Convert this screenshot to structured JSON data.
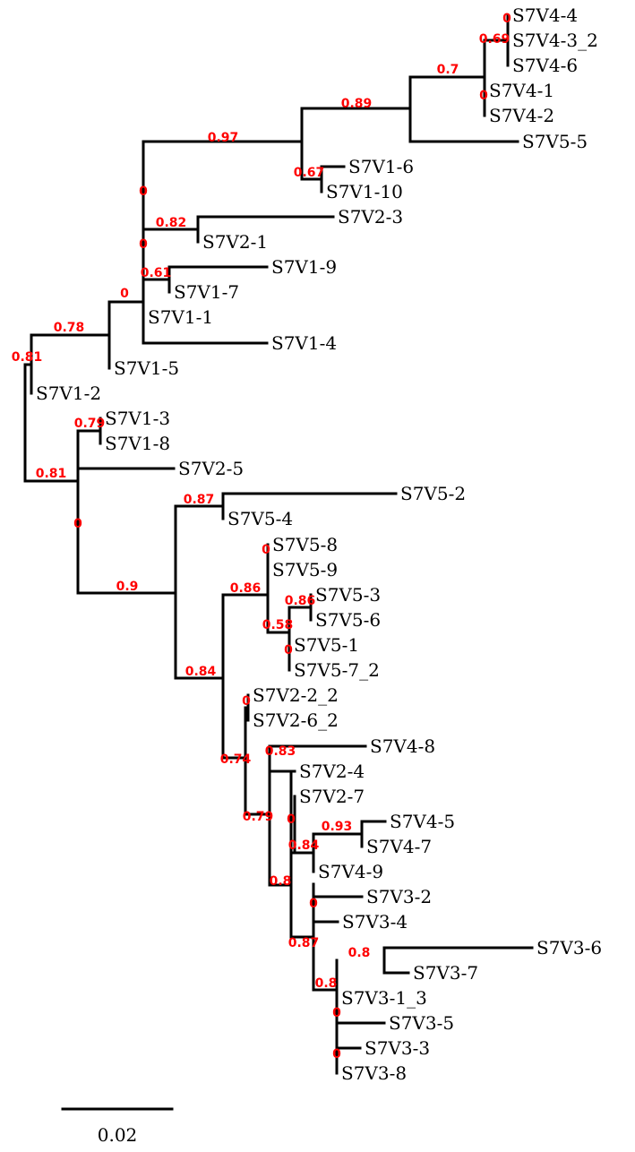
{
  "tree": {
    "tip_labels": [
      "S7V4-4",
      "S7V4-3_2",
      "S7V4-6",
      "S7V4-1",
      "S7V4-2",
      "S7V5-5",
      "S7V1-6",
      "S7V1-10",
      "S7V2-3",
      "S7V2-1",
      "S7V1-9",
      "S7V1-7",
      "S7V1-1",
      "S7V1-4",
      "S7V1-5",
      "S7V1-2",
      "S7V1-3",
      "S7V1-8",
      "S7V2-5",
      "S7V5-2",
      "S7V5-4",
      "S7V5-8",
      "S7V5-9",
      "S7V5-3",
      "S7V5-6",
      "S7V5-1",
      "S7V5-7_2",
      "S7V2-2_2",
      "S7V2-6_2",
      "S7V4-8",
      "S7V2-4",
      "S7V2-7",
      "S7V4-5",
      "S7V4-7",
      "S7V4-9",
      "S7V3-2",
      "S7V3-4",
      "S7V3-6",
      "S7V3-7",
      "S7V3-1_3",
      "S7V3-5",
      "S7V3-3",
      "S7V3-8"
    ],
    "support_labels": [
      "0",
      "0.69",
      "0.7",
      "0",
      "0.89",
      "0.97",
      "0.67",
      "0",
      "0.82",
      "0",
      "0.61",
      "0",
      "0.78",
      "0.81",
      "0.79",
      "0.81",
      "0",
      "0.87",
      "0.9",
      "0",
      "0.86",
      "0.86",
      "0.58",
      "0",
      "0.84",
      "0",
      "0.74",
      "0.83",
      "0.79",
      "0",
      "0.93",
      "0.84",
      "0.8",
      "0",
      "0.87",
      "0.8",
      "0.8",
      "0",
      "0"
    ],
    "support_color": "#ff0000",
    "branch_color": "#000000"
  },
  "scale_bar": {
    "label": "0.02"
  }
}
